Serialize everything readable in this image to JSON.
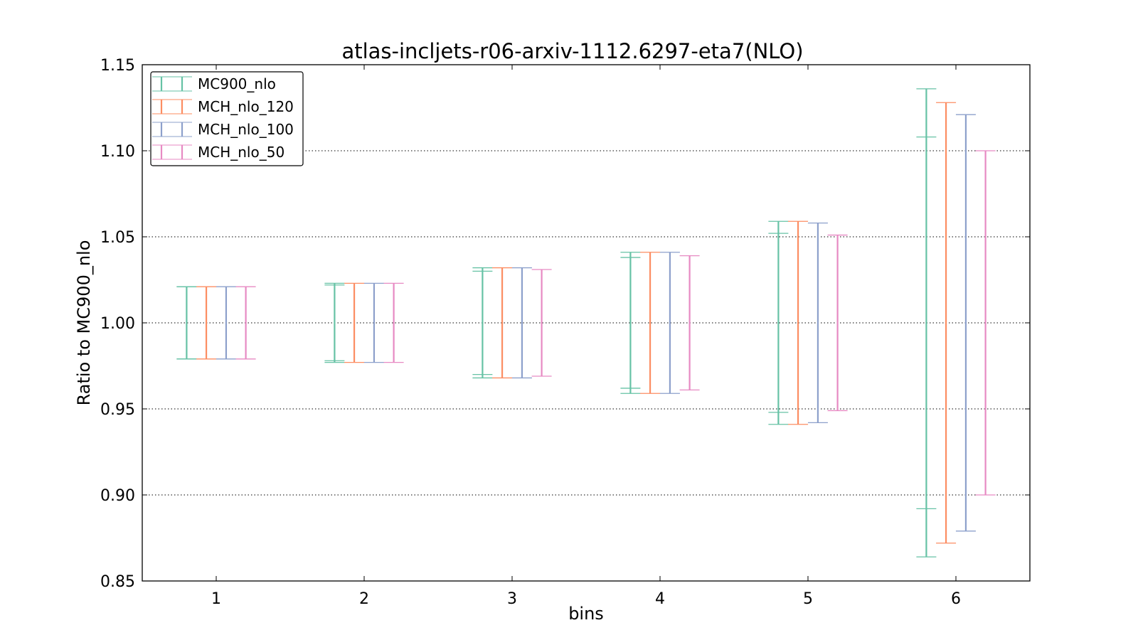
{
  "chart_data": {
    "type": "errorbar",
    "title": "atlas-incljets-r06-arxiv-1112.6297-eta7(NLO)",
    "xlabel": "bins",
    "ylabel": "Ratio to MC900_nlo",
    "xlim": [
      0.5,
      6.5
    ],
    "ylim": [
      0.85,
      1.15
    ],
    "x_ticks": [
      "1",
      "2",
      "3",
      "4",
      "5",
      "6"
    ],
    "y_ticks": [
      "0.85",
      "0.90",
      "0.95",
      "1.00",
      "1.05",
      "1.10",
      "1.15"
    ],
    "grid": "y-dotted",
    "legend_position": "top-left",
    "series": [
      {
        "name": "MC900_nlo",
        "color": "#66c2a5",
        "x_offset": -0.2,
        "outer": [
          [
            0.979,
            1.021
          ],
          [
            0.977,
            1.023
          ],
          [
            0.968,
            1.032
          ],
          [
            0.959,
            1.041
          ],
          [
            0.941,
            1.059
          ],
          [
            0.864,
            1.136
          ]
        ],
        "inner": [
          [
            0.979,
            1.021
          ],
          [
            0.978,
            1.022
          ],
          [
            0.97,
            1.03
          ],
          [
            0.962,
            1.038
          ],
          [
            0.948,
            1.052
          ],
          [
            0.892,
            1.108
          ]
        ]
      },
      {
        "name": "MCH_nlo_120",
        "color": "#fc8d62",
        "x_offset": -0.067,
        "outer": [
          [
            0.979,
            1.021
          ],
          [
            0.977,
            1.023
          ],
          [
            0.968,
            1.032
          ],
          [
            0.959,
            1.041
          ],
          [
            0.941,
            1.059
          ],
          [
            0.872,
            1.128
          ]
        ]
      },
      {
        "name": "MCH_nlo_100",
        "color": "#8da0cb",
        "x_offset": 0.067,
        "outer": [
          [
            0.979,
            1.021
          ],
          [
            0.977,
            1.023
          ],
          [
            0.968,
            1.032
          ],
          [
            0.959,
            1.041
          ],
          [
            0.942,
            1.058
          ],
          [
            0.879,
            1.121
          ]
        ]
      },
      {
        "name": "MCH_nlo_50",
        "color": "#e78ac3",
        "x_offset": 0.2,
        "outer": [
          [
            0.979,
            1.021
          ],
          [
            0.977,
            1.023
          ],
          [
            0.969,
            1.031
          ],
          [
            0.961,
            1.039
          ],
          [
            0.949,
            1.051
          ],
          [
            0.9,
            1.1
          ]
        ]
      }
    ]
  }
}
